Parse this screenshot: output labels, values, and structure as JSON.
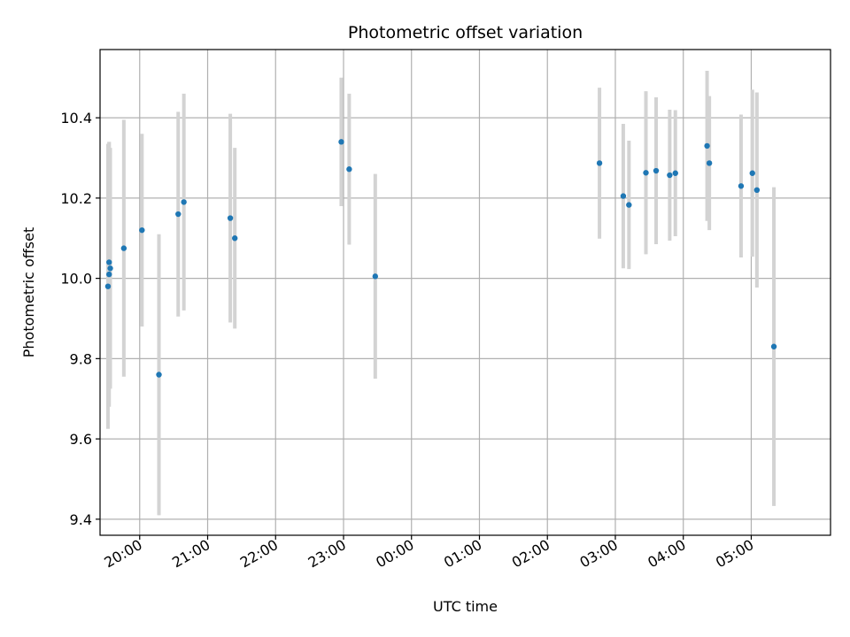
{
  "chart_data": {
    "type": "scatter",
    "title": "Photometric offset variation",
    "xlabel": "UTC time",
    "ylabel": "Photometric offset",
    "x_axis_kind": "time",
    "xlim": [
      "19:25",
      "06:10"
    ],
    "ylim": [
      9.36,
      10.57
    ],
    "xticks": [
      "20:00",
      "21:00",
      "22:00",
      "23:00",
      "00:00",
      "01:00",
      "02:00",
      "03:00",
      "04:00",
      "05:00"
    ],
    "yticks": [
      9.4,
      9.6,
      9.8,
      10.0,
      10.2,
      10.4
    ],
    "ytick_labels": [
      "9.4",
      "9.6",
      "9.8",
      "10.0",
      "10.2",
      "10.4"
    ],
    "grid": true,
    "point_color": "#1f77b4",
    "errorbar_color": "#d3d3d3",
    "points": [
      {
        "x": "19:32",
        "y": 9.98,
        "yerr": 0.355
      },
      {
        "x": "19:33",
        "y": 10.04,
        "yerr": 0.3
      },
      {
        "x": "19:33",
        "y": 10.01,
        "yerr": 0.33
      },
      {
        "x": "19:34",
        "y": 10.025,
        "yerr": 0.3
      },
      {
        "x": "19:46",
        "y": 10.075,
        "yerr": 0.32
      },
      {
        "x": "20:02",
        "y": 10.12,
        "yerr": 0.24
      },
      {
        "x": "20:17",
        "y": 9.76,
        "yerr": 0.35
      },
      {
        "x": "20:34",
        "y": 10.16,
        "yerr": 0.255
      },
      {
        "x": "20:39",
        "y": 10.19,
        "yerr": 0.27
      },
      {
        "x": "21:20",
        "y": 10.15,
        "yerr": 0.26
      },
      {
        "x": "21:24",
        "y": 10.1,
        "yerr": 0.225
      },
      {
        "x": "22:58",
        "y": 10.34,
        "yerr": 0.16
      },
      {
        "x": "23:05",
        "y": 10.272,
        "yerr": 0.188
      },
      {
        "x": "23:28",
        "y": 10.005,
        "yerr": 0.255
      },
      {
        "x": "02:46",
        "y": 10.287,
        "yerr": 0.188
      },
      {
        "x": "03:07",
        "y": 10.205,
        "yerr": 0.18
      },
      {
        "x": "03:12",
        "y": 10.183,
        "yerr": 0.16
      },
      {
        "x": "03:27",
        "y": 10.263,
        "yerr": 0.203
      },
      {
        "x": "03:36",
        "y": 10.268,
        "yerr": 0.183
      },
      {
        "x": "03:48",
        "y": 10.257,
        "yerr": 0.163
      },
      {
        "x": "03:53",
        "y": 10.262,
        "yerr": 0.157
      },
      {
        "x": "04:21",
        "y": 10.33,
        "yerr": 0.187
      },
      {
        "x": "04:23",
        "y": 10.287,
        "yerr": 0.167
      },
      {
        "x": "04:51",
        "y": 10.23,
        "yerr": 0.178
      },
      {
        "x": "05:01",
        "y": 10.262,
        "yerr": 0.208
      },
      {
        "x": "05:05",
        "y": 10.22,
        "yerr": 0.243
      },
      {
        "x": "05:20",
        "y": 9.83,
        "yerr": 0.397
      }
    ]
  }
}
